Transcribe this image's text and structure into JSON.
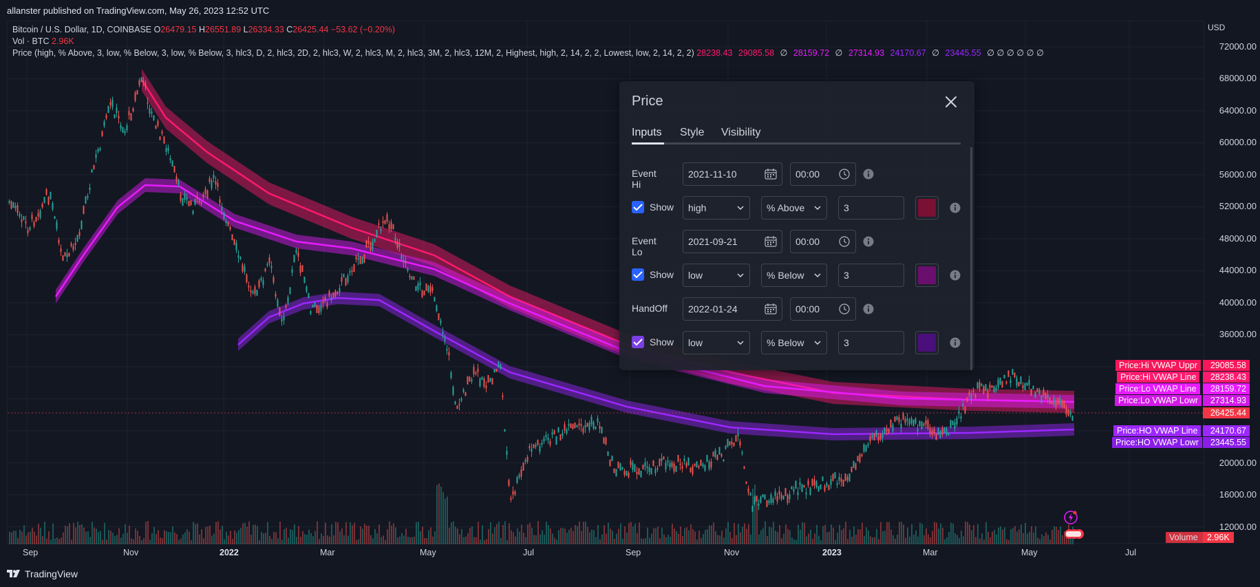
{
  "topbar": {
    "publisher_line": "allanster published on TradingView.com, May 26, 2023 12:52 UTC"
  },
  "legend": {
    "symbol": "Bitcoin / U.S. Dollar, 1D, COINBASE",
    "o_label": "O",
    "o_val": "26479.15",
    "h_label": "H",
    "h_val": "26551.89",
    "l_label": "L",
    "l_val": "26334.33",
    "c_label": "C",
    "c_val": "26425.44",
    "change": "−53.62 (−0.20%)",
    "vol_label": "Vol · BTC",
    "vol_val": "2.96K",
    "indicator": "Price (high, % Above, 3, low, % Below, 3, low, % Below, 3, hlc3, D, 2, hlc3, 2D, 2, hlc3, W, 2, hlc3, M, 2, hlc3, 3M, 2, hlc3, 12M, 2, Highest, high, 2, 14, 2, 2, Lowest, low, 2, 14, 2, 2)",
    "ind_vals": [
      "28238.43",
      "29085.58",
      "∅",
      "28159.72",
      "∅",
      "27314.93",
      "24170.67",
      "∅",
      "23445.55",
      "∅ ∅ ∅ ∅ ∅ ∅"
    ]
  },
  "price_axis": {
    "currency": "USD",
    "ticks": [
      "72000.00",
      "68000.00",
      "64000.00",
      "60000.00",
      "56000.00",
      "52000.00",
      "48000.00",
      "44000.00",
      "40000.00",
      "36000.00",
      "20000.00",
      "16000.00",
      "12000.00"
    ]
  },
  "badges": [
    {
      "label": "Price:Hi VWAP Uppr",
      "value": "29085.58",
      "color": "#f7175a"
    },
    {
      "label": "Price:Hi VWAP Line",
      "value": "28238.43",
      "color": "#ff1a6e"
    },
    {
      "label": "Price:Lo VWAP Line",
      "value": "28159.72",
      "color": "#e81cff"
    },
    {
      "label": "Price:Lo VWAP Lowr",
      "value": "27314.93",
      "color": "#d21ae6"
    },
    {
      "label": "",
      "value": "26425.44",
      "color": "#f23645"
    },
    {
      "label": "Price:HO VWAP Line",
      "value": "24170.67",
      "color": "#9c27ff"
    },
    {
      "label": "Price:HO VWAP Lowr",
      "value": "23445.55",
      "color": "#8a1ee6"
    }
  ],
  "volume_tag": {
    "label": "Volume",
    "value": "2.96K"
  },
  "date_axis": [
    "Sep",
    "Nov",
    "2022",
    "Mar",
    "May",
    "Jul",
    "Sep",
    "Nov",
    "2023",
    "Mar",
    "May",
    "Jul"
  ],
  "footer": {
    "brand": "TradingView"
  },
  "dialog": {
    "title": "Price",
    "tabs": [
      "Inputs",
      "Style",
      "Visibility"
    ],
    "rows": [
      {
        "label": "Event Hi",
        "date": "2021-11-10",
        "time": "00:00"
      },
      {
        "show_label": "Show",
        "source": "high",
        "mode": "% Above",
        "value": "3",
        "swatch": "#7a1033"
      },
      {
        "label": "Event Lo",
        "date": "2021-09-21",
        "time": "00:00"
      },
      {
        "show_label": "Show",
        "source": "low",
        "mode": "% Below",
        "value": "3",
        "swatch": "#6b0f6e"
      },
      {
        "label": "HandOff",
        "date": "2022-01-24",
        "time": "00:00"
      },
      {
        "show_label": "Show",
        "source": "low",
        "mode": "% Below",
        "value": "3",
        "swatch": "#4a0f7a"
      }
    ]
  },
  "colors": {
    "background": "#131722",
    "up": "#26a69a",
    "down": "#ef5350",
    "hi_band": "#ff1a6e",
    "lo_band": "#e81cff",
    "ho_band": "#9c27ff"
  }
}
